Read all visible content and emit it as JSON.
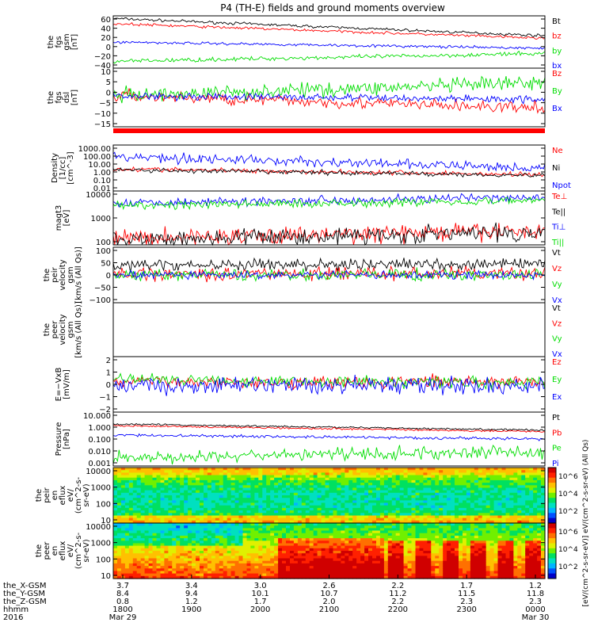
{
  "title": "P4 (TH-E) fields and ground moments overview",
  "colors": {
    "black": "#000000",
    "red": "#ff0000",
    "green": "#00dd00",
    "blue": "#0000ff",
    "bright_green": "#00ff00"
  },
  "chart_data": [
    {
      "id": "fgs-gsm",
      "type": "line",
      "ylabel": [
        "the",
        "fgs",
        "gsm",
        "[nT]"
      ],
      "ticks": [
        "60",
        "40",
        "20",
        "0",
        "−20",
        "−40"
      ],
      "ylim": [
        -40,
        60
      ],
      "series": [
        {
          "name": "Bt",
          "color": "#000000",
          "start": 55,
          "end": 22,
          "noise": 2
        },
        {
          "name": "bz",
          "color": "#ff0000",
          "start": 45,
          "end": 17,
          "noise": 2
        },
        {
          "name": "by",
          "color": "#00dd00",
          "start": -27,
          "end": -12,
          "noise": 3
        },
        {
          "name": "bx",
          "color": "#0000ff",
          "start": 10,
          "end": -2,
          "noise": 2
        }
      ]
    },
    {
      "id": "fgs-dsl",
      "type": "line",
      "ylabel": [
        "the",
        "fgs",
        "dsl",
        "[nT]"
      ],
      "ticks": [
        "10",
        "5",
        "0",
        "−5",
        "−10",
        "−15"
      ],
      "ylim": [
        -18,
        14
      ],
      "series": [
        {
          "name": "Bz",
          "color": "#ff0000",
          "start": -1,
          "end": -8,
          "noise": 2.5
        },
        {
          "name": "By",
          "color": "#00dd00",
          "start": -1,
          "end": 6,
          "noise": 3
        },
        {
          "name": "Bx",
          "color": "#0000ff",
          "start": -1,
          "end": -3,
          "noise": 1.5
        }
      ]
    },
    {
      "id": "density",
      "type": "line",
      "scale": "log",
      "ylabel": [
        "Density",
        "[1/cc]",
        "[cm^-3]"
      ],
      "ticks": [
        "1000.00",
        "100.00",
        "10.00",
        "1.00",
        "0.10",
        "0.01"
      ],
      "ylim": [
        0.01,
        1000
      ],
      "series": [
        {
          "name": "Ne",
          "color": "#ff0000",
          "start": 2.5,
          "end": 0.6,
          "noise": 0.2
        },
        {
          "name": "Ni",
          "color": "#000000",
          "start": 2.0,
          "end": 0.5,
          "noise": 0.2
        },
        {
          "name": "Npot",
          "color": "#0000ff",
          "start": 60,
          "end": 3,
          "noise": 0.4
        }
      ]
    },
    {
      "id": "temperature",
      "type": "line",
      "scale": "log",
      "ylabel": [
        "magt3",
        "[eV]"
      ],
      "ticks": [
        "10000",
        "1000",
        "100"
      ],
      "ylim": [
        40,
        12000
      ],
      "series": [
        {
          "name": "Te⊥",
          "color": "#ff0000",
          "start": 80,
          "end": 180,
          "noise": 0.3
        },
        {
          "name": "Te||",
          "color": "#000000",
          "start": 70,
          "end": 150,
          "noise": 0.3
        },
        {
          "name": "Ti⊥",
          "color": "#0000ff",
          "start": 3500,
          "end": 6000,
          "noise": 0.15
        },
        {
          "name": "Ti||",
          "color": "#00dd00",
          "start": 2500,
          "end": 4500,
          "noise": 0.15
        }
      ]
    },
    {
      "id": "peir-velocity",
      "type": "line",
      "ylabel": [
        "the",
        "peir",
        "velocity",
        "gsm",
        "[km/s (All Qs)]"
      ],
      "ticks": [
        "100",
        "50",
        "0",
        "−50",
        "−100"
      ],
      "ylim": [
        -100,
        100
      ],
      "series": [
        {
          "name": "Vt",
          "color": "#000000",
          "start": 35,
          "end": 40,
          "noise": 15
        },
        {
          "name": "Vz",
          "color": "#ff0000",
          "start": 5,
          "end": 5,
          "noise": 18
        },
        {
          "name": "Vy",
          "color": "#00dd00",
          "start": 0,
          "end": 0,
          "noise": 15
        },
        {
          "name": "Vx",
          "color": "#0000ff",
          "start": 0,
          "end": 0,
          "noise": 10
        }
      ]
    },
    {
      "id": "peer-velocity",
      "type": "line",
      "ylabel": [
        "the",
        "peer",
        "velocity",
        "gsm",
        "[km/s (All Qs)]"
      ],
      "ticks": [],
      "ylim": [
        -100,
        100
      ],
      "series": [
        {
          "name": "Vt",
          "color": "#000000"
        },
        {
          "name": "Vz",
          "color": "#ff0000"
        },
        {
          "name": "Vy",
          "color": "#00dd00"
        },
        {
          "name": "Vx",
          "color": "#0000ff"
        }
      ]
    },
    {
      "id": "efield",
      "type": "line",
      "ylabel": [
        "E=−VxB",
        "[mV/m]"
      ],
      "ticks": [
        "2",
        "1",
        "0",
        "−1",
        "−2"
      ],
      "ylim": [
        -2,
        2.2
      ],
      "series": [
        {
          "name": "Ez",
          "color": "#ff0000",
          "start": 0.3,
          "end": 0.3,
          "noise": 0.35
        },
        {
          "name": "Ey",
          "color": "#00dd00",
          "start": 0.5,
          "end": 0.2,
          "noise": 0.35
        },
        {
          "name": "Ex",
          "color": "#0000ff",
          "start": 0,
          "end": 0,
          "noise": 0.5
        }
      ]
    },
    {
      "id": "pressure",
      "type": "line",
      "scale": "log",
      "ylabel": [
        "Pressure",
        "[nPa]"
      ],
      "ticks": [
        "10.000",
        "1.000",
        "0.100",
        "0.010",
        "0.001"
      ],
      "ylim": [
        0.001,
        10
      ],
      "series": [
        {
          "name": "Pt",
          "color": "#000000",
          "start": 1.3,
          "end": 0.45,
          "noise": 0.05
        },
        {
          "name": "Pb",
          "color": "#ff0000",
          "start": 1.0,
          "end": 0.35,
          "noise": 0.05
        },
        {
          "name": "Pe",
          "color": "#00dd00",
          "start": 0.004,
          "end": 0.012,
          "noise": 0.35
        },
        {
          "name": "Pi",
          "color": "#0000ff",
          "start": 0.2,
          "end": 0.1,
          "noise": 0.08
        }
      ]
    },
    {
      "id": "peir-eflux",
      "type": "heatmap",
      "ylabel": [
        "the",
        "peir",
        "en",
        "eflux",
        "eV/",
        "(cm^2-s-",
        "sr-eV)"
      ],
      "ticks": [
        "10000",
        "1000",
        "100",
        "10"
      ],
      "ylim": [
        5,
        20000
      ]
    },
    {
      "id": "peer-eflux",
      "type": "heatmap",
      "ylabel": [
        "the",
        "peer",
        "en",
        "eflux",
        "eV/",
        "(cm^2-s-",
        "sr-eV)"
      ],
      "ticks": [
        "10000",
        "1000",
        "100",
        "10"
      ],
      "ylim": [
        5,
        20000
      ]
    }
  ],
  "colorbar": {
    "label": "[eV/(cm^2-s-sr-eV)] eV/(cm^2-s-sr-eV) (All Qs)",
    "ticks_top": [
      "10^6",
      "10^4",
      "10^2"
    ],
    "ticks_bottom": [
      "10^6",
      "10^4",
      "10^2"
    ]
  },
  "x_axis": {
    "row_labels": [
      "the_X-GSM",
      "the_Y-GSM",
      "the_Z-GSM",
      "hhmm",
      "2016"
    ],
    "columns": [
      {
        "x": "1800",
        "X": "3.7",
        "Y": "8.4",
        "Z": "0.8",
        "date": "Mar 29"
      },
      {
        "x": "1900",
        "X": "3.4",
        "Y": "9.4",
        "Z": "1.2",
        "date": ""
      },
      {
        "x": "2000",
        "X": "3.0",
        "Y": "10.1",
        "Z": "1.7",
        "date": ""
      },
      {
        "x": "2100",
        "X": "2.6",
        "Y": "10.7",
        "Z": "2.0",
        "date": ""
      },
      {
        "x": "2200",
        "X": "2.2",
        "Y": "11.2",
        "Z": "2.2",
        "date": ""
      },
      {
        "x": "2300",
        "X": "1.7",
        "Y": "11.5",
        "Z": "2.3",
        "date": ""
      },
      {
        "x": "0000",
        "X": "1.2",
        "Y": "11.8",
        "Z": "2.3",
        "date": "Mar 30"
      }
    ]
  }
}
